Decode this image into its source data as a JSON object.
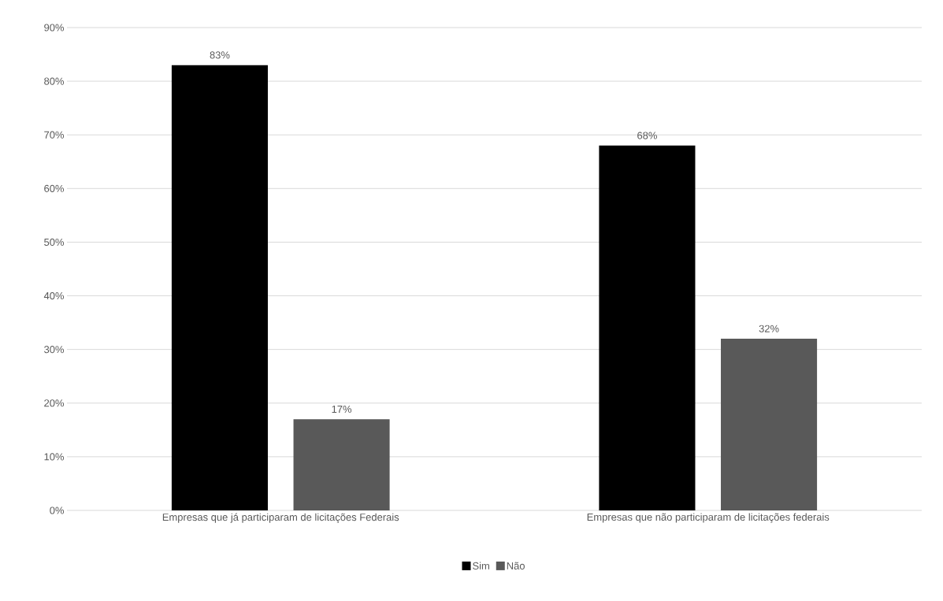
{
  "chart_data": {
    "type": "bar",
    "categories": [
      "Empresas que já participaram de licitações Federais",
      "Empresas que não participaram de licitações federais"
    ],
    "series": [
      {
        "name": "Sim",
        "color": "#000000",
        "values": [
          83,
          68
        ],
        "value_labels": [
          "83%",
          "68%"
        ]
      },
      {
        "name": "Não",
        "color": "#595959",
        "values": [
          17,
          32
        ],
        "value_labels": [
          "17%",
          "32%"
        ]
      }
    ],
    "ylim": [
      0,
      90
    ],
    "yticks": [
      {
        "value": 0,
        "label": "0%"
      },
      {
        "value": 10,
        "label": "10%"
      },
      {
        "value": 20,
        "label": "20%"
      },
      {
        "value": 30,
        "label": "30%"
      },
      {
        "value": 40,
        "label": "40%"
      },
      {
        "value": 50,
        "label": "50%"
      },
      {
        "value": 60,
        "label": "60%"
      },
      {
        "value": 70,
        "label": "70%"
      },
      {
        "value": 80,
        "label": "80%"
      },
      {
        "value": 90,
        "label": "90%"
      }
    ],
    "grid": "y",
    "legend": "bottom"
  }
}
